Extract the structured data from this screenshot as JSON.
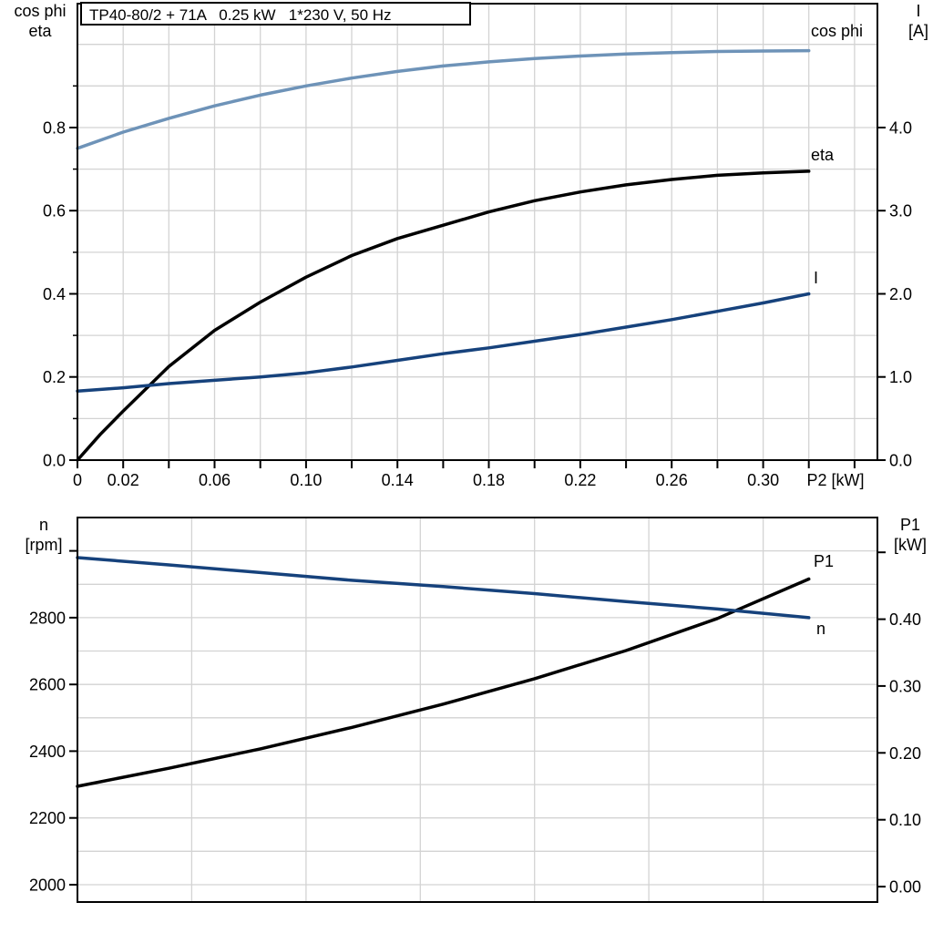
{
  "title": "TP40-80/2 + 71A   0.25 kW   1*230 V, 50 Hz",
  "colors": {
    "light_blue": "#6e93b8",
    "dark_blue": "#16427c",
    "black": "#000000",
    "grid": "#d3d3d3",
    "axis": "#000000",
    "background": "#ffffff"
  },
  "chart_data": [
    {
      "type": "line",
      "x_axis": {
        "title": "P2 [kW]",
        "range": [
          0,
          0.35
        ],
        "grid": [
          0.02,
          0.04,
          0.06,
          0.08,
          0.1,
          0.12,
          0.14,
          0.16,
          0.18,
          0.2,
          0.22,
          0.24,
          0.26,
          0.28,
          0.3,
          0.32,
          0.34
        ],
        "ticks": [
          0,
          0.02,
          0.04,
          0.06,
          0.08,
          0.1,
          0.12,
          0.14,
          0.16,
          0.18,
          0.2,
          0.22,
          0.24,
          0.26,
          0.28,
          0.3,
          0.32,
          0.34
        ],
        "tick_labels": [
          {
            "v": 0,
            "t": "0"
          },
          {
            "v": 0.02,
            "t": "0.02"
          },
          {
            "v": 0.06,
            "t": "0.06"
          },
          {
            "v": 0.1,
            "t": "0.10"
          },
          {
            "v": 0.14,
            "t": "0.14"
          },
          {
            "v": 0.18,
            "t": "0.18"
          },
          {
            "v": 0.22,
            "t": "0.22"
          },
          {
            "v": 0.26,
            "t": "0.26"
          },
          {
            "v": 0.3,
            "t": "0.30"
          }
        ]
      },
      "y_left": {
        "title_lines": [
          "cos phi",
          "eta"
        ],
        "range": [
          0,
          1.098
        ],
        "grid": [
          0.1,
          0.2,
          0.3,
          0.4,
          0.5,
          0.6,
          0.7,
          0.8,
          0.9,
          1.0
        ],
        "ticks": [
          {
            "v": 0,
            "t": "0.0"
          },
          {
            "v": 0.2,
            "t": "0.2"
          },
          {
            "v": 0.4,
            "t": "0.4"
          },
          {
            "v": 0.6,
            "t": "0.6"
          },
          {
            "v": 0.8,
            "t": "0.8"
          }
        ],
        "minor": [
          0.1,
          0.3,
          0.5,
          0.7,
          0.9
        ]
      },
      "y_right": {
        "title_lines": [
          "I",
          "[A]"
        ],
        "range": [
          0,
          5.49
        ],
        "ticks": [
          {
            "v": 0,
            "t": "0.0"
          },
          {
            "v": 1,
            "t": "1.0"
          },
          {
            "v": 2,
            "t": "2.0"
          },
          {
            "v": 3,
            "t": "3.0"
          },
          {
            "v": 4,
            "t": "4.0"
          }
        ],
        "minor": []
      },
      "series": [
        {
          "name": "cos-phi",
          "label": "cos phi",
          "axis": "left",
          "color": "light_blue",
          "points": [
            [
              0,
              0.75
            ],
            [
              0.02,
              0.789
            ],
            [
              0.04,
              0.822
            ],
            [
              0.06,
              0.852
            ],
            [
              0.08,
              0.878
            ],
            [
              0.1,
              0.9
            ],
            [
              0.12,
              0.919
            ],
            [
              0.14,
              0.935
            ],
            [
              0.16,
              0.948
            ],
            [
              0.18,
              0.958
            ],
            [
              0.2,
              0.966
            ],
            [
              0.22,
              0.972
            ],
            [
              0.24,
              0.977
            ],
            [
              0.26,
              0.98
            ],
            [
              0.28,
              0.983
            ],
            [
              0.3,
              0.984
            ],
            [
              0.32,
              0.985
            ]
          ]
        },
        {
          "name": "eta",
          "label": "eta",
          "axis": "left",
          "color": "black",
          "points": [
            [
              0,
              0
            ],
            [
              0.01,
              0.062
            ],
            [
              0.02,
              0.118
            ],
            [
              0.04,
              0.225
            ],
            [
              0.06,
              0.312
            ],
            [
              0.08,
              0.38
            ],
            [
              0.1,
              0.44
            ],
            [
              0.12,
              0.492
            ],
            [
              0.14,
              0.533
            ],
            [
              0.16,
              0.565
            ],
            [
              0.18,
              0.597
            ],
            [
              0.2,
              0.624
            ],
            [
              0.22,
              0.645
            ],
            [
              0.24,
              0.662
            ],
            [
              0.26,
              0.675
            ],
            [
              0.28,
              0.685
            ],
            [
              0.3,
              0.691
            ],
            [
              0.32,
              0.695
            ]
          ]
        },
        {
          "name": "current",
          "label": "I",
          "axis": "right",
          "color": "dark_blue",
          "points": [
            [
              0,
              0.83
            ],
            [
              0.02,
              0.87
            ],
            [
              0.04,
              0.92
            ],
            [
              0.06,
              0.96
            ],
            [
              0.08,
              1.0
            ],
            [
              0.1,
              1.05
            ],
            [
              0.12,
              1.12
            ],
            [
              0.14,
              1.2
            ],
            [
              0.16,
              1.28
            ],
            [
              0.18,
              1.35
            ],
            [
              0.2,
              1.43
            ],
            [
              0.22,
              1.51
            ],
            [
              0.24,
              1.6
            ],
            [
              0.26,
              1.69
            ],
            [
              0.28,
              1.79
            ],
            [
              0.3,
              1.89
            ],
            [
              0.32,
              2.0
            ]
          ]
        }
      ]
    },
    {
      "type": "line",
      "x_axis": {
        "title": "",
        "range": [
          0,
          0.35
        ],
        "grid": [
          0.05,
          0.1,
          0.15,
          0.2,
          0.25,
          0.3
        ],
        "ticks": [],
        "tick_labels": []
      },
      "y_left": {
        "title_lines": [
          "n",
          "[rpm]"
        ],
        "range": [
          1948,
          3100
        ],
        "grid": [
          2000,
          2100,
          2200,
          2300,
          2400,
          2500,
          2600,
          2700,
          2800,
          2900,
          3000
        ],
        "ticks": [
          {
            "v": 2000,
            "t": "2000"
          },
          {
            "v": 2200,
            "t": "2200"
          },
          {
            "v": 2400,
            "t": "2400"
          },
          {
            "v": 2600,
            "t": "2600"
          },
          {
            "v": 2800,
            "t": "2800"
          },
          {
            "v": 3000,
            "t": ""
          }
        ],
        "minor": []
      },
      "y_right": {
        "title_lines": [
          "P1",
          "[kW]"
        ],
        "range": [
          -0.023,
          0.552
        ],
        "ticks": [
          {
            "v": 0,
            "t": "0.00"
          },
          {
            "v": 0.1,
            "t": "0.10"
          },
          {
            "v": 0.2,
            "t": "0.20"
          },
          {
            "v": 0.3,
            "t": "0.30"
          },
          {
            "v": 0.4,
            "t": "0.40"
          },
          {
            "v": 0.5,
            "t": ""
          }
        ],
        "minor": []
      },
      "series": [
        {
          "name": "p1",
          "label": "P1",
          "axis": "right",
          "color": "black",
          "points": [
            [
              0,
              0.15
            ],
            [
              0.04,
              0.177
            ],
            [
              0.08,
              0.206
            ],
            [
              0.12,
              0.238
            ],
            [
              0.16,
              0.273
            ],
            [
              0.2,
              0.311
            ],
            [
              0.24,
              0.353
            ],
            [
              0.28,
              0.401
            ],
            [
              0.32,
              0.46
            ]
          ]
        },
        {
          "name": "n",
          "label": "n",
          "axis": "left",
          "color": "dark_blue",
          "points": [
            [
              0,
              2980
            ],
            [
              0.04,
              2958
            ],
            [
              0.08,
              2935
            ],
            [
              0.12,
              2912
            ],
            [
              0.16,
              2893
            ],
            [
              0.2,
              2872
            ],
            [
              0.24,
              2848
            ],
            [
              0.28,
              2826
            ],
            [
              0.32,
              2800
            ]
          ]
        }
      ]
    }
  ]
}
